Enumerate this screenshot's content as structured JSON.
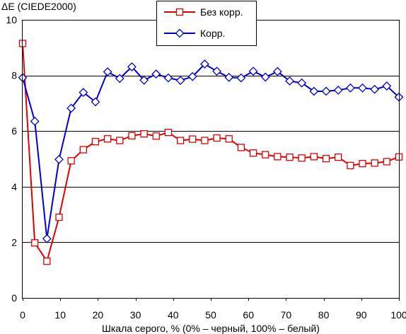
{
  "chart_data": {
    "type": "line",
    "ylabel": "ΔE (CIEDE2000)",
    "xlabel": "Шкала серого, % (0% – черный, 100% – белый)",
    "xlim": [
      0,
      100
    ],
    "ylim": [
      0,
      10
    ],
    "xticks": [
      0,
      10,
      20,
      30,
      40,
      50,
      60,
      70,
      80,
      90,
      100
    ],
    "yticks": [
      0,
      2,
      4,
      6,
      8,
      10
    ],
    "grid": "horizontal",
    "legend_position": "top-center",
    "x": [
      0,
      3.23,
      6.45,
      9.68,
      12.9,
      16.13,
      19.35,
      22.58,
      25.81,
      29.03,
      32.26,
      35.48,
      38.71,
      41.94,
      45.16,
      48.39,
      51.61,
      54.84,
      58.06,
      61.29,
      64.52,
      67.74,
      70.97,
      74.19,
      77.42,
      80.65,
      83.87,
      87.1,
      90.32,
      93.55,
      96.77,
      100
    ],
    "series": [
      {
        "name": "Без корр.",
        "color": "#e00000",
        "marker": "square",
        "values": [
          9.15,
          1.98,
          1.32,
          2.9,
          4.93,
          5.33,
          5.62,
          5.72,
          5.66,
          5.83,
          5.9,
          5.82,
          5.95,
          5.66,
          5.71,
          5.66,
          5.75,
          5.72,
          5.41,
          5.21,
          5.15,
          5.08,
          5.06,
          5.03,
          5.08,
          5.01,
          5.06,
          4.76,
          4.83,
          4.85,
          4.9,
          5.07
        ]
      },
      {
        "name": "Корр.",
        "color": "#0000cc",
        "marker": "diamond",
        "values": [
          7.92,
          6.35,
          2.13,
          4.98,
          6.82,
          7.39,
          7.05,
          8.13,
          7.89,
          8.31,
          7.83,
          8.05,
          7.91,
          7.82,
          7.96,
          8.41,
          8.15,
          7.93,
          7.91,
          8.15,
          7.94,
          8.14,
          7.8,
          7.73,
          7.43,
          7.43,
          7.47,
          7.55,
          7.55,
          7.5,
          7.62,
          7.22
        ]
      }
    ]
  }
}
